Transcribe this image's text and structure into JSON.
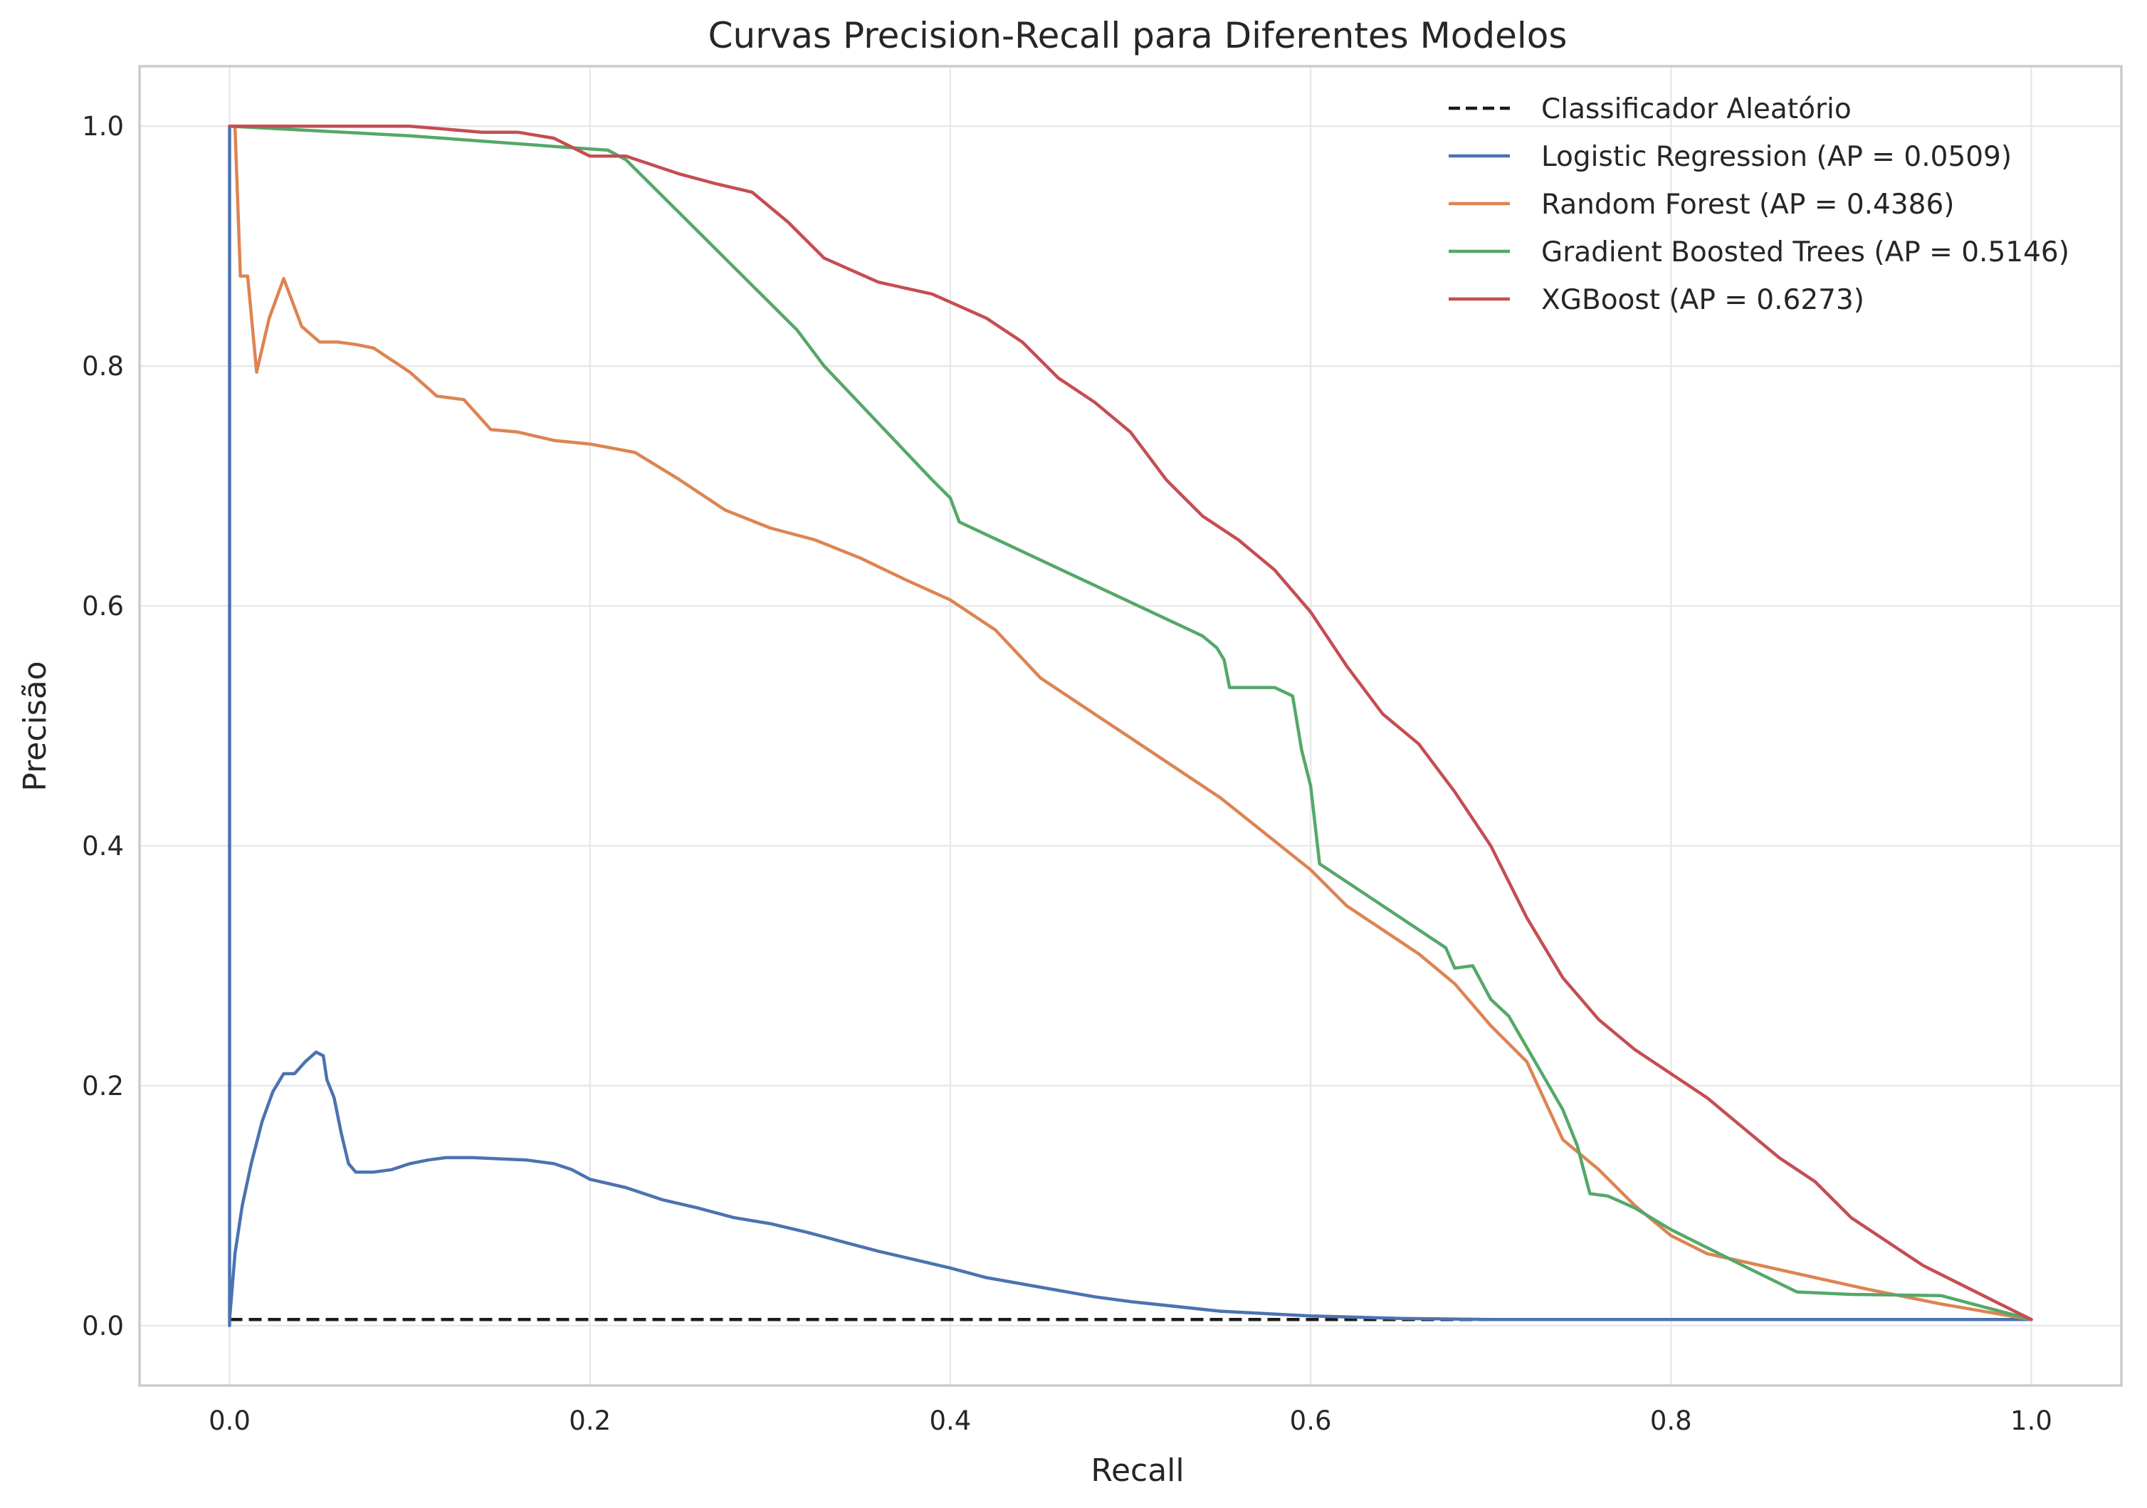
{
  "chart_data": {
    "type": "line",
    "title": "Curvas Precision-Recall para Diferentes Modelos",
    "xlabel": "Recall",
    "ylabel": "Precisão",
    "xlim": [
      -0.05,
      1.05
    ],
    "ylim": [
      -0.05,
      1.05
    ],
    "xticks": [
      0.0,
      0.2,
      0.4,
      0.6,
      0.8,
      1.0
    ],
    "xtick_labels": [
      "0.0",
      "0.2",
      "0.4",
      "0.6",
      "0.8",
      "1.0"
    ],
    "yticks": [
      0.0,
      0.2,
      0.4,
      0.6,
      0.8,
      1.0
    ],
    "ytick_labels": [
      "0.0",
      "0.2",
      "0.4",
      "0.6",
      "0.8",
      "1.0"
    ],
    "grid": true,
    "legend_position": "top-right",
    "series": [
      {
        "name": "Classificador Aleatório",
        "color": "#1a1a1a",
        "dash": true,
        "x": [
          0.0,
          1.0
        ],
        "y": [
          0.005,
          0.005
        ]
      },
      {
        "name": "Logistic Regression (AP = 0.0509)",
        "color": "#4c72b0",
        "dash": false,
        "x": [
          0.0,
          0.0,
          0.0,
          0.003,
          0.007,
          0.012,
          0.018,
          0.024,
          0.03,
          0.036,
          0.042,
          0.048,
          0.052,
          0.054,
          0.058,
          0.062,
          0.066,
          0.07,
          0.075,
          0.08,
          0.09,
          0.1,
          0.11,
          0.12,
          0.135,
          0.15,
          0.165,
          0.18,
          0.19,
          0.2,
          0.22,
          0.24,
          0.26,
          0.28,
          0.3,
          0.32,
          0.34,
          0.36,
          0.38,
          0.4,
          0.42,
          0.45,
          0.48,
          0.5,
          0.55,
          0.6,
          0.65,
          0.7,
          0.8,
          0.9,
          1.0
        ],
        "y": [
          0.0,
          1.0,
          0.005,
          0.06,
          0.1,
          0.135,
          0.17,
          0.195,
          0.21,
          0.21,
          0.22,
          0.228,
          0.225,
          0.205,
          0.19,
          0.16,
          0.135,
          0.128,
          0.128,
          0.128,
          0.13,
          0.135,
          0.138,
          0.14,
          0.14,
          0.139,
          0.138,
          0.135,
          0.13,
          0.122,
          0.115,
          0.105,
          0.098,
          0.09,
          0.085,
          0.078,
          0.07,
          0.062,
          0.055,
          0.048,
          0.04,
          0.032,
          0.024,
          0.02,
          0.012,
          0.008,
          0.006,
          0.005,
          0.005,
          0.005,
          0.005
        ]
      },
      {
        "name": "Random Forest (AP = 0.4386)",
        "color": "#dd8452",
        "dash": false,
        "x": [
          0.0,
          0.003,
          0.006,
          0.01,
          0.015,
          0.022,
          0.03,
          0.04,
          0.05,
          0.06,
          0.07,
          0.08,
          0.09,
          0.1,
          0.115,
          0.13,
          0.145,
          0.16,
          0.18,
          0.2,
          0.225,
          0.25,
          0.275,
          0.3,
          0.325,
          0.35,
          0.375,
          0.4,
          0.425,
          0.45,
          0.475,
          0.5,
          0.525,
          0.55,
          0.575,
          0.6,
          0.62,
          0.64,
          0.66,
          0.68,
          0.7,
          0.72,
          0.74,
          0.76,
          0.78,
          0.8,
          0.82,
          0.85,
          0.88,
          0.91,
          0.95,
          1.0
        ],
        "y": [
          1.0,
          1.0,
          0.875,
          0.875,
          0.795,
          0.84,
          0.873,
          0.833,
          0.82,
          0.82,
          0.818,
          0.815,
          0.805,
          0.795,
          0.775,
          0.772,
          0.747,
          0.745,
          0.738,
          0.735,
          0.728,
          0.705,
          0.68,
          0.665,
          0.655,
          0.64,
          0.622,
          0.605,
          0.58,
          0.54,
          0.515,
          0.49,
          0.465,
          0.44,
          0.41,
          0.38,
          0.35,
          0.33,
          0.31,
          0.285,
          0.25,
          0.22,
          0.155,
          0.13,
          0.1,
          0.075,
          0.06,
          0.05,
          0.04,
          0.03,
          0.018,
          0.005
        ]
      },
      {
        "name": "Gradient Boosted Trees (AP = 0.5146)",
        "color": "#55a868",
        "dash": false,
        "x": [
          0.0,
          0.1,
          0.19,
          0.21,
          0.22,
          0.315,
          0.325,
          0.33,
          0.39,
          0.4,
          0.405,
          0.54,
          0.548,
          0.552,
          0.555,
          0.56,
          0.58,
          0.59,
          0.595,
          0.6,
          0.605,
          0.615,
          0.675,
          0.68,
          0.69,
          0.7,
          0.71,
          0.74,
          0.748,
          0.755,
          0.765,
          0.78,
          0.8,
          0.84,
          0.87,
          0.9,
          0.95,
          1.0
        ],
        "y": [
          1.0,
          0.992,
          0.982,
          0.98,
          0.972,
          0.83,
          0.81,
          0.8,
          0.705,
          0.69,
          0.67,
          0.575,
          0.565,
          0.555,
          0.532,
          0.532,
          0.532,
          0.525,
          0.48,
          0.45,
          0.385,
          0.375,
          0.315,
          0.298,
          0.3,
          0.272,
          0.258,
          0.18,
          0.15,
          0.11,
          0.108,
          0.098,
          0.08,
          0.05,
          0.028,
          0.026,
          0.025,
          0.005
        ]
      },
      {
        "name": "XGBoost (AP = 0.6273)",
        "color": "#c44e52",
        "dash": false,
        "x": [
          0.0,
          0.05,
          0.1,
          0.14,
          0.16,
          0.18,
          0.2,
          0.22,
          0.25,
          0.27,
          0.29,
          0.31,
          0.33,
          0.36,
          0.39,
          0.42,
          0.44,
          0.46,
          0.48,
          0.5,
          0.52,
          0.54,
          0.56,
          0.58,
          0.6,
          0.62,
          0.64,
          0.66,
          0.68,
          0.7,
          0.72,
          0.74,
          0.76,
          0.78,
          0.8,
          0.82,
          0.84,
          0.86,
          0.88,
          0.9,
          0.92,
          0.94,
          0.96,
          0.98,
          1.0
        ],
        "y": [
          1.0,
          1.0,
          1.0,
          0.995,
          0.995,
          0.99,
          0.975,
          0.975,
          0.96,
          0.952,
          0.945,
          0.92,
          0.89,
          0.87,
          0.86,
          0.84,
          0.82,
          0.79,
          0.77,
          0.745,
          0.705,
          0.675,
          0.655,
          0.63,
          0.595,
          0.55,
          0.51,
          0.485,
          0.445,
          0.4,
          0.34,
          0.29,
          0.255,
          0.23,
          0.21,
          0.19,
          0.165,
          0.14,
          0.12,
          0.09,
          0.07,
          0.05,
          0.035,
          0.02,
          0.005
        ]
      }
    ]
  }
}
